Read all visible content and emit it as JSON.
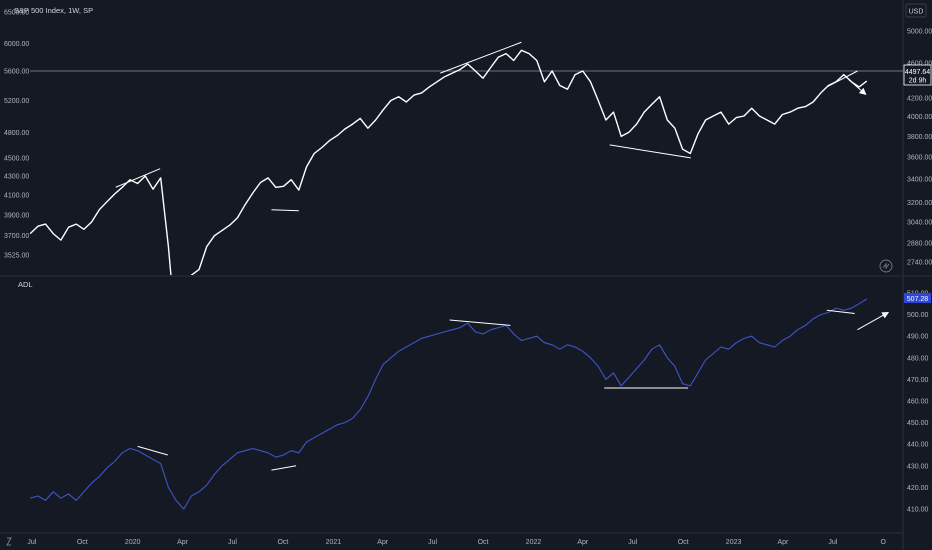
{
  "header": {
    "title": "S&P 500 Index, 1W, SP",
    "currency": "USD"
  },
  "colors": {
    "background": "#151924",
    "price_line": "#ffffff",
    "adl_line": "#3f55c8",
    "axis_text": "#b2b5be",
    "badge_adl": "#2f47d6"
  },
  "icons": {
    "timezone": "globe-icon",
    "logo": "tv-logo-icon"
  },
  "chart_data": [
    {
      "type": "line",
      "name": "S&P 500 Index, 1W, SP",
      "scale": "log",
      "left_axis_ticks": [
        6500.0,
        6000.0,
        5600.0,
        5200.0,
        4800.0,
        4500.0,
        4300.0,
        4100.0,
        3900.0,
        3700.0,
        3525.0
      ],
      "right_axis_ticks": [
        5000.0,
        4600.0,
        4200.0,
        4000.0,
        3800.0,
        3600.0,
        3400.0,
        3200.0,
        3040.0,
        2880.0,
        2740.0
      ],
      "last_value": "4497.64",
      "countdown": "2d 9h",
      "points": [
        [
          "2019-06-28",
          3720
        ],
        [
          "2019-07-12",
          3790
        ],
        [
          "2019-07-26",
          3810
        ],
        [
          "2019-08-09",
          3720
        ],
        [
          "2019-08-23",
          3660
        ],
        [
          "2019-09-06",
          3780
        ],
        [
          "2019-09-20",
          3810
        ],
        [
          "2019-10-04",
          3760
        ],
        [
          "2019-10-18",
          3830
        ],
        [
          "2019-11-01",
          3950
        ],
        [
          "2019-11-15",
          4030
        ],
        [
          "2019-11-29",
          4110
        ],
        [
          "2019-12-13",
          4180
        ],
        [
          "2019-12-27",
          4260
        ],
        [
          "2020-01-10",
          4220
        ],
        [
          "2020-01-24",
          4300
        ],
        [
          "2020-02-07",
          4160
        ],
        [
          "2020-02-21",
          4280
        ],
        [
          "2020-03-06",
          3600
        ],
        [
          "2020-03-20",
          2900
        ],
        [
          "2020-04-03",
          3050
        ],
        [
          "2020-04-17",
          3350
        ],
        [
          "2020-05-01",
          3400
        ],
        [
          "2020-05-15",
          3600
        ],
        [
          "2020-05-29",
          3700
        ],
        [
          "2020-06-12",
          3750
        ],
        [
          "2020-06-26",
          3800
        ],
        [
          "2020-07-10",
          3870
        ],
        [
          "2020-07-24",
          4000
        ],
        [
          "2020-08-07",
          4120
        ],
        [
          "2020-08-21",
          4230
        ],
        [
          "2020-09-04",
          4280
        ],
        [
          "2020-09-18",
          4180
        ],
        [
          "2020-10-02",
          4190
        ],
        [
          "2020-10-16",
          4260
        ],
        [
          "2020-10-30",
          4150
        ],
        [
          "2020-11-13",
          4400
        ],
        [
          "2020-11-27",
          4550
        ],
        [
          "2020-12-11",
          4620
        ],
        [
          "2020-12-25",
          4700
        ],
        [
          "2021-01-08",
          4760
        ],
        [
          "2021-01-22",
          4840
        ],
        [
          "2021-02-05",
          4900
        ],
        [
          "2021-02-19",
          4970
        ],
        [
          "2021-03-05",
          4850
        ],
        [
          "2021-03-19",
          4950
        ],
        [
          "2021-04-02",
          5080
        ],
        [
          "2021-04-16",
          5200
        ],
        [
          "2021-04-30",
          5250
        ],
        [
          "2021-05-14",
          5180
        ],
        [
          "2021-05-28",
          5270
        ],
        [
          "2021-06-11",
          5300
        ],
        [
          "2021-06-25",
          5380
        ],
        [
          "2021-07-09",
          5450
        ],
        [
          "2021-07-23",
          5520
        ],
        [
          "2021-08-06",
          5570
        ],
        [
          "2021-08-20",
          5620
        ],
        [
          "2021-09-03",
          5700
        ],
        [
          "2021-09-17",
          5600
        ],
        [
          "2021-10-01",
          5500
        ],
        [
          "2021-10-15",
          5650
        ],
        [
          "2021-10-29",
          5800
        ],
        [
          "2021-11-12",
          5850
        ],
        [
          "2021-11-26",
          5750
        ],
        [
          "2021-12-10",
          5900
        ],
        [
          "2021-12-24",
          5850
        ],
        [
          "2022-01-07",
          5750
        ],
        [
          "2022-01-21",
          5450
        ],
        [
          "2022-02-04",
          5600
        ],
        [
          "2022-02-18",
          5400
        ],
        [
          "2022-03-04",
          5350
        ],
        [
          "2022-03-18",
          5550
        ],
        [
          "2022-04-01",
          5600
        ],
        [
          "2022-04-15",
          5450
        ],
        [
          "2022-04-29",
          5200
        ],
        [
          "2022-05-13",
          4950
        ],
        [
          "2022-05-27",
          5050
        ],
        [
          "2022-06-10",
          4750
        ],
        [
          "2022-06-24",
          4800
        ],
        [
          "2022-07-08",
          4900
        ],
        [
          "2022-07-22",
          5050
        ],
        [
          "2022-08-05",
          5150
        ],
        [
          "2022-08-19",
          5250
        ],
        [
          "2022-09-02",
          4950
        ],
        [
          "2022-09-16",
          4850
        ],
        [
          "2022-09-30",
          4600
        ],
        [
          "2022-10-14",
          4550
        ],
        [
          "2022-10-28",
          4780
        ],
        [
          "2022-11-11",
          4950
        ],
        [
          "2022-11-25",
          5000
        ],
        [
          "2022-12-09",
          5050
        ],
        [
          "2022-12-23",
          4900
        ],
        [
          "2023-01-06",
          4980
        ],
        [
          "2023-01-20",
          5000
        ],
        [
          "2023-02-03",
          5100
        ],
        [
          "2023-02-17",
          5000
        ],
        [
          "2023-03-03",
          4950
        ],
        [
          "2023-03-17",
          4900
        ],
        [
          "2023-03-31",
          5020
        ],
        [
          "2023-04-14",
          5050
        ],
        [
          "2023-04-28",
          5100
        ],
        [
          "2023-05-12",
          5120
        ],
        [
          "2023-05-26",
          5180
        ],
        [
          "2023-06-09",
          5300
        ],
        [
          "2023-06-23",
          5400
        ],
        [
          "2023-07-07",
          5450
        ],
        [
          "2023-07-21",
          5550
        ],
        [
          "2023-08-04",
          5450
        ],
        [
          "2023-08-18",
          5380
        ],
        [
          "2023-09-01",
          5460
        ]
      ]
    },
    {
      "type": "line",
      "name": "ADL",
      "right_axis_ticks": [
        510.0,
        500.0,
        490.0,
        480.0,
        470.0,
        460.0,
        450.0,
        440.0,
        430.0,
        420.0,
        410.0
      ],
      "ylim": [
        406,
        512
      ],
      "last_value": "507.28",
      "points": [
        [
          "2019-06-28",
          415
        ],
        [
          "2019-07-12",
          416
        ],
        [
          "2019-07-26",
          414
        ],
        [
          "2019-08-09",
          418
        ],
        [
          "2019-08-23",
          415
        ],
        [
          "2019-09-06",
          417
        ],
        [
          "2019-09-20",
          414
        ],
        [
          "2019-10-04",
          418
        ],
        [
          "2019-10-18",
          422
        ],
        [
          "2019-11-01",
          425
        ],
        [
          "2019-11-15",
          429
        ],
        [
          "2019-11-29",
          432
        ],
        [
          "2019-12-13",
          436
        ],
        [
          "2019-12-27",
          438
        ],
        [
          "2020-01-10",
          437
        ],
        [
          "2020-01-24",
          435
        ],
        [
          "2020-02-07",
          433
        ],
        [
          "2020-02-21",
          431
        ],
        [
          "2020-03-06",
          420
        ],
        [
          "2020-03-20",
          414
        ],
        [
          "2020-04-03",
          410
        ],
        [
          "2020-04-17",
          416
        ],
        [
          "2020-05-01",
          418
        ],
        [
          "2020-05-15",
          421
        ],
        [
          "2020-05-29",
          426
        ],
        [
          "2020-06-12",
          430
        ],
        [
          "2020-06-26",
          433
        ],
        [
          "2020-07-10",
          436
        ],
        [
          "2020-07-24",
          437
        ],
        [
          "2020-08-07",
          438
        ],
        [
          "2020-08-21",
          437
        ],
        [
          "2020-09-04",
          436
        ],
        [
          "2020-09-18",
          434
        ],
        [
          "2020-10-02",
          435
        ],
        [
          "2020-10-16",
          437
        ],
        [
          "2020-10-30",
          436
        ],
        [
          "2020-11-13",
          441
        ],
        [
          "2020-11-27",
          443
        ],
        [
          "2020-12-11",
          445
        ],
        [
          "2020-12-25",
          447
        ],
        [
          "2021-01-08",
          449
        ],
        [
          "2021-01-22",
          450
        ],
        [
          "2021-02-05",
          452
        ],
        [
          "2021-02-19",
          456
        ],
        [
          "2021-03-05",
          462
        ],
        [
          "2021-03-19",
          470
        ],
        [
          "2021-04-02",
          477
        ],
        [
          "2021-04-16",
          480
        ],
        [
          "2021-04-30",
          483
        ],
        [
          "2021-05-14",
          485
        ],
        [
          "2021-05-28",
          487
        ],
        [
          "2021-06-11",
          489
        ],
        [
          "2021-06-25",
          490
        ],
        [
          "2021-07-09",
          491
        ],
        [
          "2021-07-23",
          492
        ],
        [
          "2021-08-06",
          493
        ],
        [
          "2021-08-20",
          494
        ],
        [
          "2021-09-03",
          496
        ],
        [
          "2021-09-17",
          492
        ],
        [
          "2021-10-01",
          491
        ],
        [
          "2021-10-15",
          493
        ],
        [
          "2021-10-29",
          494
        ],
        [
          "2021-11-12",
          495
        ],
        [
          "2021-11-26",
          491
        ],
        [
          "2021-12-10",
          488
        ],
        [
          "2021-12-24",
          489
        ],
        [
          "2022-01-07",
          490
        ],
        [
          "2022-01-21",
          487
        ],
        [
          "2022-02-04",
          486
        ],
        [
          "2022-02-18",
          484
        ],
        [
          "2022-03-04",
          486
        ],
        [
          "2022-03-18",
          485
        ],
        [
          "2022-04-01",
          483
        ],
        [
          "2022-04-15",
          480
        ],
        [
          "2022-04-29",
          476
        ],
        [
          "2022-05-13",
          470
        ],
        [
          "2022-05-27",
          473
        ],
        [
          "2022-06-10",
          467
        ],
        [
          "2022-06-24",
          471
        ],
        [
          "2022-07-08",
          475
        ],
        [
          "2022-07-22",
          479
        ],
        [
          "2022-08-05",
          484
        ],
        [
          "2022-08-19",
          486
        ],
        [
          "2022-09-02",
          480
        ],
        [
          "2022-09-16",
          476
        ],
        [
          "2022-09-30",
          468
        ],
        [
          "2022-10-14",
          467
        ],
        [
          "2022-10-28",
          473
        ],
        [
          "2022-11-11",
          479
        ],
        [
          "2022-11-25",
          482
        ],
        [
          "2022-12-09",
          485
        ],
        [
          "2022-12-23",
          484
        ],
        [
          "2023-01-06",
          487
        ],
        [
          "2023-01-20",
          489
        ],
        [
          "2023-02-03",
          490
        ],
        [
          "2023-02-17",
          487
        ],
        [
          "2023-03-03",
          486
        ],
        [
          "2023-03-17",
          485
        ],
        [
          "2023-03-31",
          488
        ],
        [
          "2023-04-14",
          490
        ],
        [
          "2023-04-28",
          493
        ],
        [
          "2023-05-12",
          495
        ],
        [
          "2023-05-26",
          498
        ],
        [
          "2023-06-09",
          500
        ],
        [
          "2023-06-23",
          501
        ],
        [
          "2023-07-07",
          503
        ],
        [
          "2023-07-21",
          502
        ],
        [
          "2023-08-04",
          503
        ],
        [
          "2023-08-18",
          505
        ],
        [
          "2023-09-01",
          507.28
        ]
      ]
    }
  ],
  "x_axis": {
    "ticks": [
      [
        "2019-07-01",
        "Jul"
      ],
      [
        "2019-10-01",
        "Oct"
      ],
      [
        "2020-01-01",
        "2020"
      ],
      [
        "2020-04-01",
        "Apr"
      ],
      [
        "2020-07-01",
        "Jul"
      ],
      [
        "2020-10-01",
        "Oct"
      ],
      [
        "2021-01-01",
        "2021"
      ],
      [
        "2021-04-01",
        "Apr"
      ],
      [
        "2021-07-01",
        "Jul"
      ],
      [
        "2021-10-01",
        "Oct"
      ],
      [
        "2022-01-01",
        "2022"
      ],
      [
        "2022-04-01",
        "Apr"
      ],
      [
        "2022-07-01",
        "Jul"
      ],
      [
        "2022-10-01",
        "Oct"
      ],
      [
        "2023-01-01",
        "2023"
      ],
      [
        "2023-04-01",
        "Apr"
      ],
      [
        "2023-07-01",
        "Jul"
      ],
      [
        "2023-10-01",
        "O"
      ]
    ]
  },
  "annotations": [
    {
      "pane": 0,
      "from": [
        "2019-12-01",
        4180
      ],
      "to": [
        "2020-02-20",
        4380
      ]
    },
    {
      "pane": 0,
      "from": [
        "2020-09-10",
        3950
      ],
      "to": [
        "2020-10-30",
        3940
      ]
    },
    {
      "pane": 0,
      "from": [
        "2021-07-15",
        5570
      ],
      "to": [
        "2021-12-10",
        6020
      ]
    },
    {
      "pane": 0,
      "from": [
        "2022-05-20",
        4650
      ],
      "to": [
        "2022-10-15",
        4500
      ]
    },
    {
      "pane": 0,
      "from": [
        "2023-06-20",
        5380
      ],
      "to": [
        "2023-08-15",
        5600
      ]
    },
    {
      "pane": 0,
      "from": [
        "2023-07-30",
        5480
      ],
      "to": [
        "2023-08-30",
        5280
      ],
      "arrow": true
    },
    {
      "pane": 1,
      "from": [
        "2020-01-10",
        439
      ],
      "to": [
        "2020-03-05",
        435
      ]
    },
    {
      "pane": 1,
      "from": [
        "2020-09-10",
        428
      ],
      "to": [
        "2020-10-25",
        430
      ]
    },
    {
      "pane": 1,
      "from": [
        "2021-08-01",
        497.5
      ],
      "to": [
        "2021-11-20",
        495
      ]
    },
    {
      "pane": 1,
      "from": [
        "2022-05-10",
        466
      ],
      "to": [
        "2022-10-10",
        466
      ]
    },
    {
      "pane": 1,
      "from": [
        "2023-06-20",
        502
      ],
      "to": [
        "2023-08-10",
        500.5
      ]
    },
    {
      "pane": 1,
      "from": [
        "2023-08-15",
        493
      ],
      "to": [
        "2023-10-10",
        501
      ],
      "arrow": true
    }
  ]
}
